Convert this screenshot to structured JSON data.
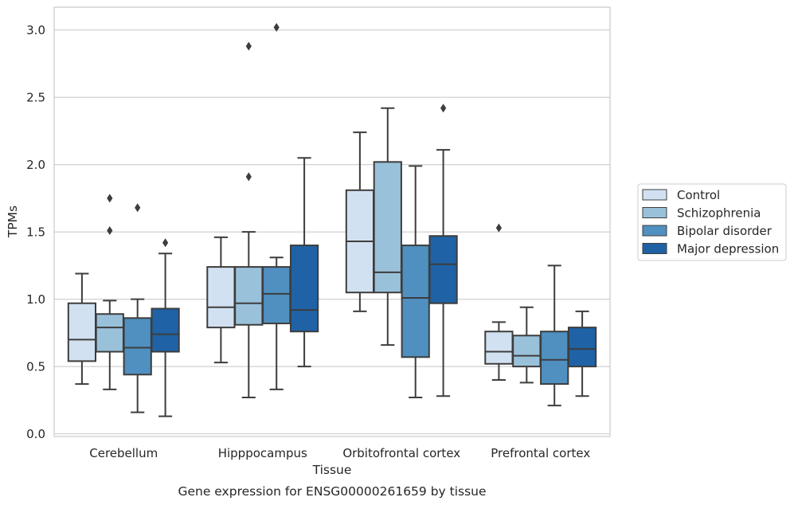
{
  "chart_data": {
    "type": "box",
    "xlabel": "Tissue",
    "ylabel": "TPMs",
    "caption": "Gene expression for ENSG00000261659 by tissue",
    "ylim": [
      -0.02,
      3.17
    ],
    "yticks": [
      "0.0",
      "0.5",
      "1.0",
      "1.5",
      "2.0",
      "2.5",
      "3.0"
    ],
    "ytick_values": [
      0.0,
      0.5,
      1.0,
      1.5,
      2.0,
      2.5,
      3.0
    ],
    "grid": true,
    "legend_position": "right",
    "categories": [
      "Cerebellum",
      "Hipppocampus",
      "Orbitofrontal cortex",
      "Prefrontal cortex"
    ],
    "series": [
      {
        "name": "Control",
        "color": "#d2e1f1",
        "boxes": [
          {
            "whislo": 0.37,
            "q1": 0.54,
            "med": 0.7,
            "q3": 0.97,
            "whishi": 1.19,
            "fliers": []
          },
          {
            "whislo": 0.53,
            "q1": 0.79,
            "med": 0.94,
            "q3": 1.24,
            "whishi": 1.46,
            "fliers": []
          },
          {
            "whislo": 0.91,
            "q1": 1.05,
            "med": 1.43,
            "q3": 1.81,
            "whishi": 2.24,
            "fliers": []
          },
          {
            "whislo": 0.4,
            "q1": 0.52,
            "med": 0.61,
            "q3": 0.76,
            "whishi": 0.83,
            "fliers": [
              1.53
            ]
          }
        ]
      },
      {
        "name": "Schizophrenia",
        "color": "#9ac1da",
        "boxes": [
          {
            "whislo": 0.33,
            "q1": 0.61,
            "med": 0.79,
            "q3": 0.89,
            "whishi": 0.99,
            "fliers": [
              1.51,
              1.75
            ]
          },
          {
            "whislo": 0.27,
            "q1": 0.81,
            "med": 0.97,
            "q3": 1.24,
            "whishi": 1.5,
            "fliers": [
              1.91,
              2.88
            ]
          },
          {
            "whislo": 0.66,
            "q1": 1.05,
            "med": 1.2,
            "q3": 2.02,
            "whishi": 2.42,
            "fliers": []
          },
          {
            "whislo": 0.38,
            "q1": 0.5,
            "med": 0.58,
            "q3": 0.73,
            "whishi": 0.94,
            "fliers": []
          }
        ]
      },
      {
        "name": "Bipolar disorder",
        "color": "#4f90c0",
        "boxes": [
          {
            "whislo": 0.16,
            "q1": 0.44,
            "med": 0.64,
            "q3": 0.86,
            "whishi": 1.0,
            "fliers": [
              1.68
            ]
          },
          {
            "whislo": 0.33,
            "q1": 0.82,
            "med": 1.04,
            "q3": 1.24,
            "whishi": 1.31,
            "fliers": [
              3.02
            ]
          },
          {
            "whislo": 0.27,
            "q1": 0.57,
            "med": 1.01,
            "q3": 1.4,
            "whishi": 1.99,
            "fliers": []
          },
          {
            "whislo": 0.21,
            "q1": 0.37,
            "med": 0.55,
            "q3": 0.76,
            "whishi": 1.25,
            "fliers": []
          }
        ]
      },
      {
        "name": "Major depression",
        "color": "#1f62a6",
        "boxes": [
          {
            "whislo": 0.13,
            "q1": 0.61,
            "med": 0.74,
            "q3": 0.93,
            "whishi": 1.34,
            "fliers": [
              1.42
            ]
          },
          {
            "whislo": 0.5,
            "q1": 0.76,
            "med": 0.92,
            "q3": 1.4,
            "whishi": 2.05,
            "fliers": []
          },
          {
            "whislo": 0.28,
            "q1": 0.97,
            "med": 1.26,
            "q3": 1.47,
            "whishi": 2.11,
            "fliers": [
              2.42
            ]
          },
          {
            "whislo": 0.28,
            "q1": 0.5,
            "med": 0.63,
            "q3": 0.79,
            "whishi": 0.91,
            "fliers": []
          }
        ]
      }
    ]
  }
}
